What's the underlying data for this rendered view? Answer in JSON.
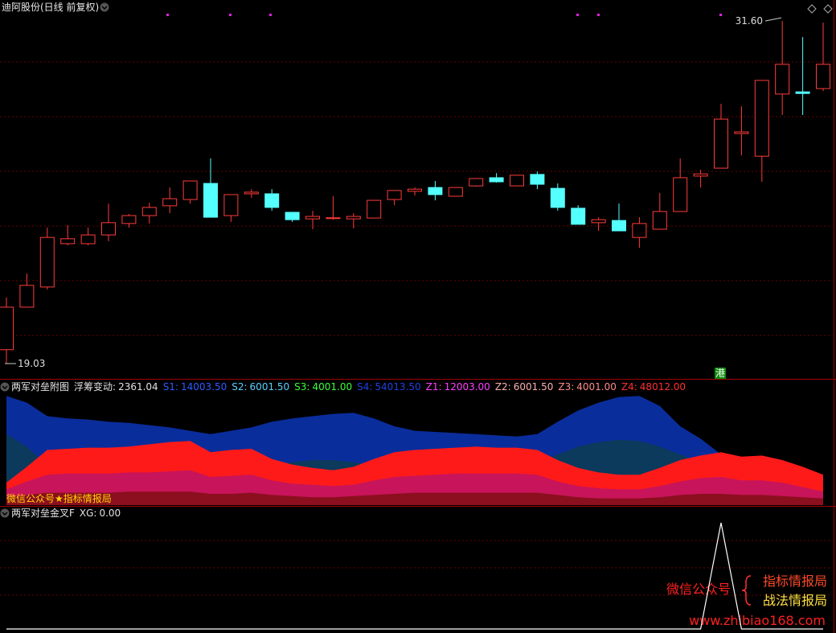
{
  "chart_data": [
    {
      "type": "candlestick",
      "title": "迪阿股份(日线 前复权)",
      "open": [
        19.54,
        21.1,
        21.84,
        23.43,
        23.43,
        23.75,
        24.17,
        24.46,
        24.82,
        25.05,
        25.64,
        24.46,
        25.26,
        25.26,
        24.58,
        24.34,
        24.36,
        24.34,
        24.37,
        25.05,
        25.35,
        25.49,
        25.17,
        25.55,
        25.85,
        25.55,
        25.97,
        25.46,
        24.73,
        24.2,
        24.28,
        23.66,
        23.96,
        24.61,
        25.91,
        26.2,
        27.47,
        26.64,
        28.92,
        29.0,
        29.12
      ],
      "high": [
        21.45,
        22.34,
        24.02,
        24.11,
        24.02,
        24.9,
        24.52,
        24.93,
        25.49,
        25.73,
        26.56,
        25.23,
        25.43,
        25.43,
        24.58,
        24.64,
        25.17,
        24.55,
        25.02,
        25.38,
        25.49,
        25.73,
        25.49,
        25.82,
        26.02,
        25.94,
        26.08,
        25.64,
        24.84,
        24.4,
        24.9,
        24.4,
        25.29,
        26.56,
        26.14,
        28.56,
        28.47,
        29.42,
        31.6,
        31.01,
        31.54
      ],
      "low": [
        19.03,
        21.1,
        21.75,
        23.37,
        23.37,
        23.52,
        24.02,
        24.17,
        24.55,
        24.9,
        24.4,
        24.23,
        25.11,
        24.64,
        24.23,
        23.96,
        24.31,
        23.99,
        24.37,
        24.84,
        25.2,
        25.02,
        25.17,
        25.52,
        25.67,
        25.55,
        25.43,
        24.64,
        24.14,
        23.9,
        23.9,
        23.28,
        23.96,
        24.61,
        25.49,
        26.2,
        26.67,
        25.7,
        28.15,
        28.15,
        29.03
      ],
      "close": [
        21.1,
        21.9,
        23.66,
        23.61,
        23.75,
        24.2,
        24.46,
        24.76,
        25.08,
        25.73,
        24.4,
        25.23,
        25.32,
        24.76,
        24.31,
        24.43,
        24.38,
        24.43,
        25.02,
        25.38,
        25.43,
        25.23,
        25.49,
        25.82,
        25.7,
        25.94,
        25.61,
        24.76,
        24.14,
        24.31,
        23.9,
        24.17,
        24.61,
        25.85,
        25.99,
        28.0,
        27.53,
        29.42,
        30.01,
        28.94,
        30.01
      ],
      "up_color": "#ff3b3b",
      "down_color": "#54ffff",
      "ylim": [
        18.5,
        32.37
      ],
      "marks": [
        {
          "value": 31.6,
          "label": "31.60"
        },
        {
          "value": 19.03,
          "label": "19.03"
        }
      ]
    },
    {
      "type": "area",
      "title": "两军对垒附图",
      "readouts": [
        {
          "name": "浮筹变动:",
          "value": 2361.04,
          "label": "2361.04",
          "color": "#e0e0e0"
        },
        {
          "name": "S1:",
          "value": 14003.5,
          "label": "14003.50",
          "color": "#2f5bff"
        },
        {
          "name": "S2:",
          "value": 6001.5,
          "label": "6001.50",
          "color": "#5ad0ff"
        },
        {
          "name": "S3:",
          "value": 4001,
          "label": "4001.00",
          "color": "#3cff3c"
        },
        {
          "name": "S4:",
          "value": 54013.5,
          "label": "54013.50",
          "color": "#2040e0"
        },
        {
          "name": "Z1:",
          "value": 12003,
          "label": "12003.00",
          "color": "#ff40ff"
        },
        {
          "name": "Z2:",
          "value": 6001.5,
          "label": "6001.50",
          "color": "#ffb0b0"
        },
        {
          "name": "Z3:",
          "value": 4001,
          "label": "4001.00",
          "color": "#ff8a8a"
        },
        {
          "name": "Z4:",
          "value": 48012,
          "label": "48012.00",
          "color": "#ff3030"
        }
      ],
      "caption": "微信公众号★指标情报局",
      "ylim": [
        0,
        100
      ],
      "series": [
        {
          "color": "#0a2d9c",
          "values": [
            97,
            91,
            79,
            77,
            76,
            74,
            73,
            71,
            69,
            66,
            63,
            66,
            69,
            74,
            77,
            79,
            81,
            82,
            77,
            70,
            66,
            65,
            64,
            63,
            62,
            61,
            63,
            74,
            84,
            91,
            96,
            97,
            88,
            70,
            59,
            45,
            43,
            41,
            36,
            31,
            26
          ]
        },
        {
          "color": "#0b3a5c",
          "values": [
            63,
            52,
            35,
            30,
            28,
            28,
            28,
            28,
            28,
            28,
            30,
            30,
            32,
            35,
            38,
            40,
            40,
            38,
            35,
            35,
            35,
            35,
            35,
            35,
            35,
            35,
            38,
            45,
            52,
            56,
            58,
            57,
            52,
            45,
            38,
            35,
            33,
            30,
            28,
            25,
            22
          ]
        },
        {
          "color": "#ff1a1a",
          "values": [
            20,
            34,
            49,
            50,
            51,
            51,
            52,
            54,
            56,
            57,
            47,
            49,
            50,
            41,
            36,
            33,
            31,
            34,
            41,
            47,
            49,
            50,
            51,
            52,
            51,
            51,
            49,
            40,
            33,
            29,
            27,
            27,
            33,
            40,
            44,
            47,
            43,
            44,
            40,
            34,
            27
          ]
        },
        {
          "color": "#c8145a",
          "values": [
            14,
            21,
            27,
            28,
            28,
            28,
            29,
            29,
            30,
            31,
            25,
            26,
            27,
            22,
            19,
            18,
            17,
            18,
            22,
            25,
            26,
            27,
            28,
            28,
            28,
            28,
            27,
            21,
            17,
            15,
            14,
            14,
            17,
            21,
            24,
            25,
            22,
            22,
            20,
            16,
            12
          ]
        },
        {
          "color": "#8b0f1e",
          "values": [
            7,
            9,
            11,
            11,
            11,
            11,
            12,
            12,
            12,
            12,
            10,
            10,
            11,
            9,
            8,
            7,
            7,
            8,
            9,
            10,
            11,
            11,
            11,
            11,
            11,
            11,
            11,
            9,
            7,
            6,
            6,
            6,
            7,
            9,
            10,
            10,
            9,
            9,
            8,
            7,
            6
          ]
        }
      ]
    },
    {
      "type": "line",
      "title": "两军对垒金叉F",
      "readouts": [
        {
          "name": "XG:",
          "value": 0,
          "label": "0.00",
          "color": "#e0e0e0"
        }
      ],
      "ylim": [
        0,
        1
      ],
      "series": [
        {
          "color": "#ffffff",
          "values": [
            0,
            0,
            0,
            0,
            0,
            0,
            0,
            0,
            0,
            0,
            0,
            0,
            0,
            0,
            0,
            0,
            0,
            0,
            0,
            0,
            0,
            0,
            0,
            0,
            0,
            0,
            0,
            0,
            0,
            0,
            0,
            0,
            0,
            0,
            0,
            1,
            0,
            0,
            0,
            0,
            0
          ]
        }
      ]
    }
  ],
  "badge": "港",
  "watermark": {
    "account": "微信公众号",
    "name1": "指标情报局",
    "name2": "战法情报局",
    "url": "www.zhibiao168.com"
  }
}
